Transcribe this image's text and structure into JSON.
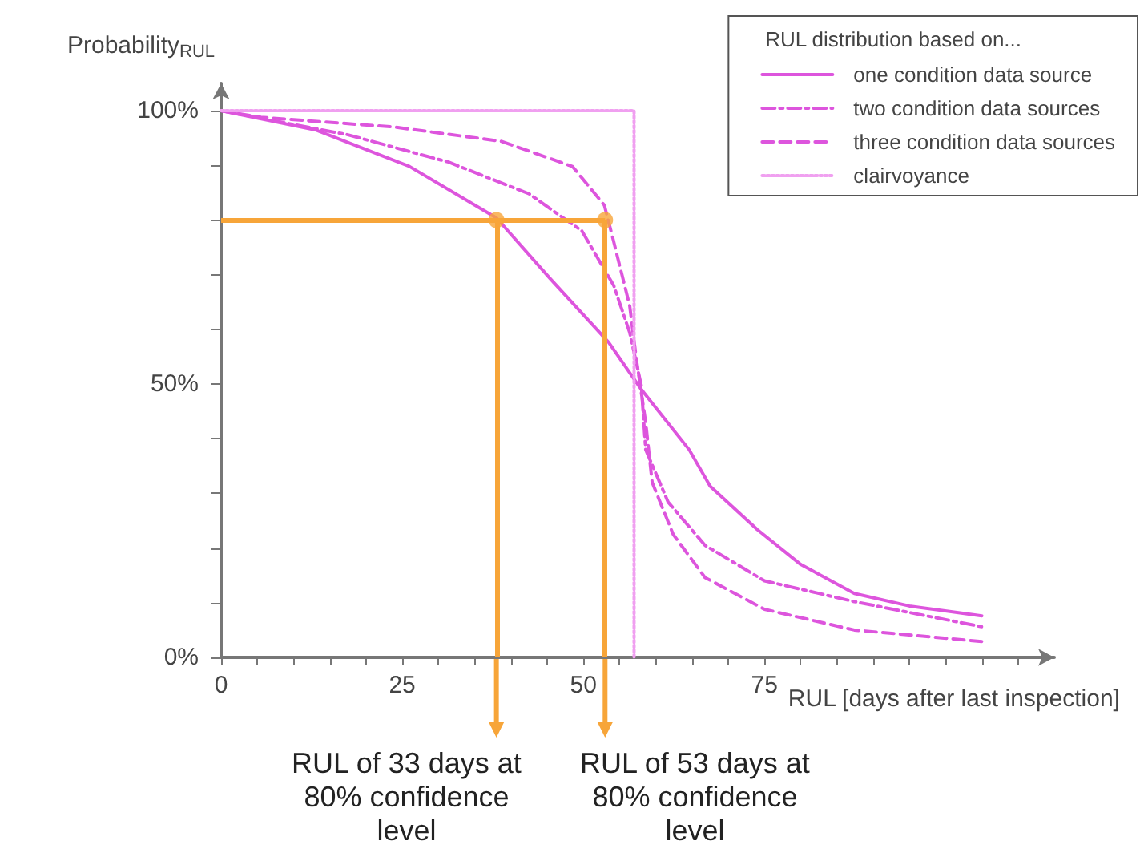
{
  "chart_data": {
    "type": "line",
    "ylabel": "Probability$_{RUL}$",
    "xlabel": "RUL [days after last inspection]",
    "legend_title": "RUL distribution based on...",
    "legend": "top right",
    "grid": false,
    "marker": "none",
    "xlim": [
      0,
      115
    ],
    "ylim": [
      0,
      105
    ],
    "xticks": [
      {
        "value": 0,
        "label": "0"
      },
      {
        "value": 5,
        "label": null
      },
      {
        "value": 10,
        "label": null
      },
      {
        "value": 15,
        "label": null
      },
      {
        "value": 20,
        "label": null
      },
      {
        "value": 25,
        "label": "25"
      },
      {
        "value": 30,
        "label": null
      },
      {
        "value": 35,
        "label": null
      },
      {
        "value": 40,
        "label": null
      },
      {
        "value": 45,
        "label": null
      },
      {
        "value": 50,
        "label": "50"
      },
      {
        "value": 55,
        "label": null
      },
      {
        "value": 60,
        "label": null
      },
      {
        "value": 65,
        "label": null
      },
      {
        "value": 70,
        "label": null
      },
      {
        "value": 75,
        "label": "75"
      },
      {
        "value": 80,
        "label": null
      },
      {
        "value": 85,
        "label": null
      },
      {
        "value": 90,
        "label": null
      },
      {
        "value": 95,
        "label": null
      },
      {
        "value": 100,
        "label": null
      },
      {
        "value": 105,
        "label": null
      },
      {
        "value": 110,
        "label": null
      }
    ],
    "yticks": [
      {
        "value": 0,
        "label": "0%"
      },
      {
        "value": 10,
        "label": null
      },
      {
        "value": 20,
        "label": null
      },
      {
        "value": 30,
        "label": null
      },
      {
        "value": 40,
        "label": null
      },
      {
        "value": 50,
        "label": "50%"
      },
      {
        "value": 60,
        "label": null
      },
      {
        "value": 70,
        "label": null
      },
      {
        "value": 80,
        "label": null
      },
      {
        "value": 90,
        "label": null
      },
      {
        "value": 100,
        "label": "100%"
      }
    ],
    "series": [
      {
        "name": "one condition data source",
        "color": "#dd55dd",
        "line_style": "solid",
        "x": [
          0,
          13,
          26,
          38,
          45.4,
          53.5,
          58,
          64.6,
          67.5,
          74,
          80,
          87.4,
          95,
          105
        ],
        "values": [
          100,
          96.5,
          89.8,
          80.4,
          69.3,
          57.6,
          49,
          38,
          31.3,
          23.4,
          17,
          11.7,
          9.4,
          7.6
        ]
      },
      {
        "name": "two condition data sources",
        "color": "#dd55dd",
        "line_style": "dashdot",
        "x": [
          0,
          17.5,
          31.4,
          42.5,
          49.8,
          54.2,
          56.4,
          58,
          58.6,
          61.7,
          66.8,
          75,
          87.4,
          105
        ],
        "values": [
          100,
          95.6,
          90.6,
          84.8,
          78,
          68,
          59.4,
          49.7,
          38,
          28.4,
          20.5,
          14,
          10.2,
          5.6
        ]
      },
      {
        "name": "three condition data sources",
        "color": "#dd55dd",
        "line_style": "dashed",
        "x": [
          0,
          5.5,
          24,
          38.7,
          48.5,
          52.9,
          54.2,
          56.4,
          57.3,
          58.6,
          59.5,
          62.4,
          66.8,
          75,
          87.4,
          105
        ],
        "values": [
          100,
          98.8,
          97,
          94.4,
          89.8,
          82.7,
          76,
          64.3,
          54.7,
          43,
          32,
          22.5,
          14.6,
          8.8,
          5,
          2.9
        ]
      },
      {
        "name": "clairvoyance",
        "color": "#f0a0f0",
        "line_style": "dotted",
        "x": [
          0,
          57,
          57
        ],
        "values": [
          100,
          100,
          0
        ]
      },
      {
        "type": "scatter",
        "color": "#f7a539",
        "marker": "circle",
        "x": [
          38,
          53
        ],
        "values": [
          80,
          80
        ]
      }
    ],
    "ref_lines": [
      {
        "axis": "y",
        "value": 80,
        "color": "#f7a539"
      },
      {
        "axis": "x",
        "value": 38,
        "label": "RUL of 33 days at 80% confidence level",
        "color": "#f7a539"
      },
      {
        "axis": "x",
        "value": 53,
        "label": "RUL of 53 days at 80% confidence level",
        "color": "#f7a539"
      }
    ]
  }
}
